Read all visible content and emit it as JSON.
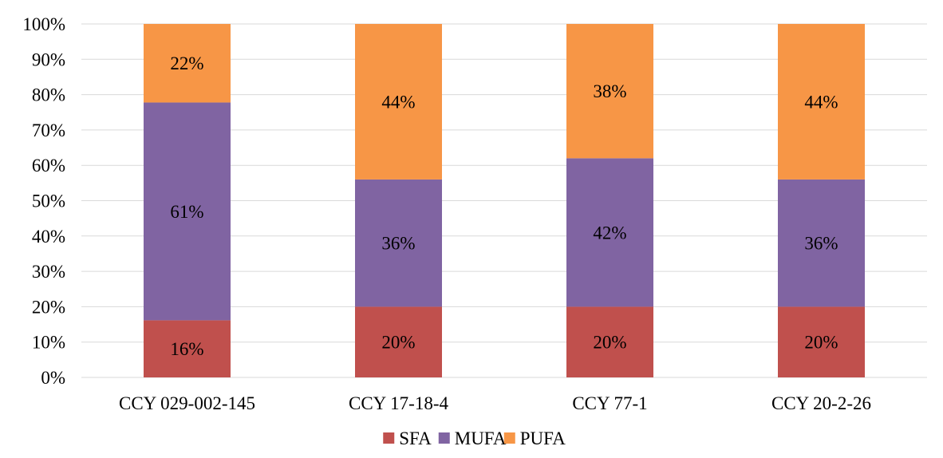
{
  "chart_data": {
    "type": "bar",
    "stacked": "percent",
    "categories": [
      "CCY 029-002-145",
      "CCY 17-18-4",
      "CCY 77-1",
      "CCY 20-2-26"
    ],
    "series": [
      {
        "name": "SFA",
        "color": "#C0504D",
        "values": [
          16,
          20,
          20,
          20
        ],
        "labels": [
          "16%",
          "20%",
          "20%",
          "20%"
        ]
      },
      {
        "name": "MUFA",
        "color": "#8064A2",
        "values": [
          61,
          36,
          42,
          36
        ],
        "labels": [
          "61%",
          "36%",
          "42%",
          "36%"
        ]
      },
      {
        "name": "PUFA",
        "color": "#F79646",
        "values": [
          22,
          44,
          38,
          44
        ],
        "labels": [
          "22%",
          "44%",
          "38%",
          "44%"
        ]
      }
    ],
    "y_ticks": [
      "0%",
      "10%",
      "20%",
      "30%",
      "40%",
      "50%",
      "60%",
      "70%",
      "80%",
      "90%",
      "100%"
    ],
    "ylim": [
      0,
      100
    ],
    "grid": true,
    "legend_position": "bottom",
    "title": "",
    "xlabel": "",
    "ylabel": ""
  }
}
